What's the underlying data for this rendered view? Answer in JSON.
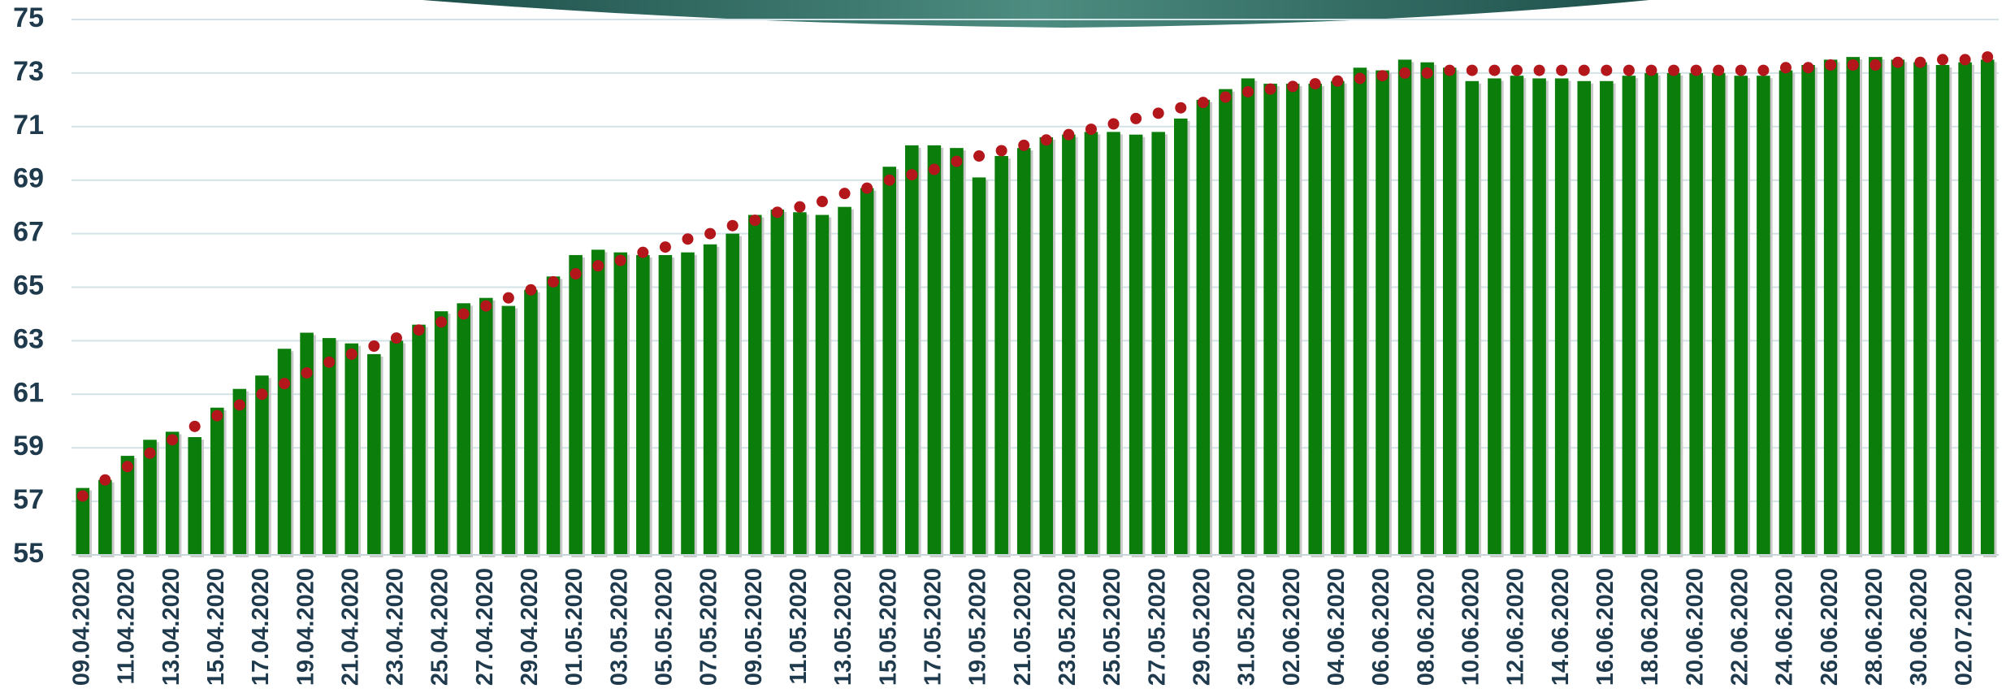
{
  "chart_data": {
    "type": "bar",
    "categories": [
      "09.04.2020",
      null,
      "11.04.2020",
      null,
      "13.04.2020",
      null,
      "15.04.2020",
      null,
      "17.04.2020",
      null,
      "19.04.2020",
      null,
      "21.04.2020",
      null,
      "23.04.2020",
      null,
      "25.04.2020",
      null,
      "27.04.2020",
      null,
      "29.04.2020",
      null,
      "01.05.2020",
      null,
      "03.05.2020",
      null,
      "05.05.2020",
      null,
      "07.05.2020",
      null,
      "09.05.2020",
      null,
      "11.05.2020",
      null,
      "13.05.2020",
      null,
      "15.05.2020",
      null,
      "17.05.2020",
      null,
      "19.05.2020",
      null,
      "21.05.2020",
      null,
      "23.05.2020",
      null,
      "25.05.2020",
      null,
      "27.05.2020",
      null,
      "29.05.2020",
      null,
      "31.05.2020",
      null,
      "02.06.2020",
      null,
      "04.06.2020",
      null,
      "06.06.2020",
      null,
      "08.06.2020",
      null,
      "10.06.2020",
      null,
      "12.06.2020",
      null,
      "14.06.2020",
      null,
      "16.06.2020",
      null,
      "18.06.2020",
      null,
      "20.06.2020",
      null,
      "22.06.2020",
      null,
      "24.06.2020",
      null,
      "26.06.2020",
      null,
      "28.06.2020",
      null,
      "30.06.2020",
      null,
      "02.07.2020",
      null
    ],
    "series": [
      {
        "type": "bar",
        "color": "#0b7d0b",
        "values": [
          57.5,
          57.8,
          58.7,
          59.3,
          59.6,
          59.4,
          60.5,
          61.2,
          61.7,
          62.7,
          63.3,
          63.1,
          62.9,
          62.5,
          63.0,
          63.6,
          64.1,
          64.4,
          64.6,
          64.3,
          64.9,
          65.4,
          66.2,
          66.4,
          66.3,
          66.2,
          66.2,
          66.3,
          66.6,
          67.0,
          67.7,
          67.9,
          67.8,
          67.7,
          68.0,
          68.7,
          69.5,
          70.3,
          70.3,
          70.2,
          69.1,
          69.9,
          70.2,
          70.6,
          70.7,
          70.8,
          70.8,
          70.7,
          70.8,
          71.3,
          72.0,
          72.4,
          72.8,
          72.6,
          72.6,
          72.6,
          72.7,
          73.2,
          73.1,
          73.5,
          73.4,
          73.2,
          72.7,
          72.8,
          72.9,
          72.8,
          72.8,
          72.7,
          72.7,
          72.9,
          73.0,
          73.0,
          73.0,
          73.0,
          72.9,
          72.9,
          73.1,
          73.3,
          73.5,
          73.6,
          73.6,
          73.5,
          73.4,
          73.3,
          73.4,
          73.5
        ]
      },
      {
        "type": "scatter",
        "color": "#b3161b",
        "values": [
          57.2,
          57.8,
          58.3,
          58.8,
          59.3,
          59.8,
          60.2,
          60.6,
          61.0,
          61.4,
          61.8,
          62.2,
          62.5,
          62.8,
          63.1,
          63.4,
          63.7,
          64.0,
          64.3,
          64.6,
          64.9,
          65.2,
          65.5,
          65.8,
          66.0,
          66.3,
          66.5,
          66.8,
          67.0,
          67.3,
          67.5,
          67.8,
          68.0,
          68.2,
          68.5,
          68.7,
          69.0,
          69.2,
          69.4,
          69.7,
          69.9,
          70.1,
          70.3,
          70.5,
          70.7,
          70.9,
          71.1,
          71.3,
          71.5,
          71.7,
          71.9,
          72.1,
          72.3,
          72.4,
          72.5,
          72.6,
          72.7,
          72.8,
          72.9,
          73.0,
          73.0,
          73.1,
          73.1,
          73.1,
          73.1,
          73.1,
          73.1,
          73.1,
          73.1,
          73.1,
          73.1,
          73.1,
          73.1,
          73.1,
          73.1,
          73.1,
          73.2,
          73.2,
          73.3,
          73.3,
          73.3,
          73.4,
          73.4,
          73.5,
          73.5,
          73.6
        ]
      }
    ],
    "ylim": [
      55,
      75
    ],
    "yticks": [
      55,
      57,
      59,
      61,
      63,
      65,
      67,
      69,
      71,
      73,
      75
    ],
    "grid": true
  }
}
